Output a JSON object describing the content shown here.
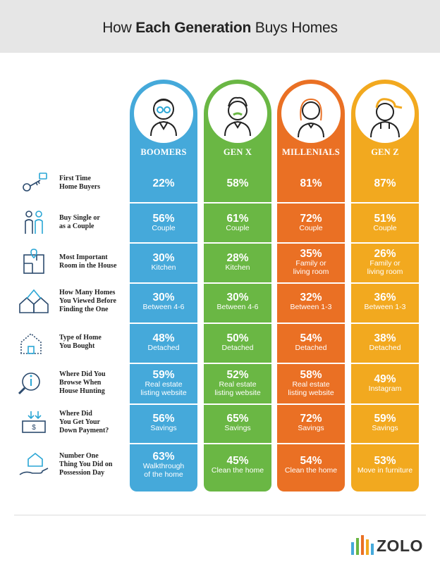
{
  "header": {
    "title_pre": "How ",
    "title_bold": "Each Generation",
    "title_post": " Buys Homes"
  },
  "colors": {
    "boomers": "#45a9da",
    "genx": "#6ab744",
    "millenials": "#ea7024",
    "genz": "#f2a91f",
    "header_bg": "#e6e6e6"
  },
  "generations": [
    {
      "name": "BOOMERS",
      "avatar": "boomer-icon",
      "cells": [
        {
          "pct": "22%",
          "sub": ""
        },
        {
          "pct": "56%",
          "sub": "Couple"
        },
        {
          "pct": "30%",
          "sub": "Kitchen"
        },
        {
          "pct": "30%",
          "sub": "Between 4-6"
        },
        {
          "pct": "48%",
          "sub": "Detached"
        },
        {
          "pct": "59%",
          "sub": "Real estate\nlisting website"
        },
        {
          "pct": "56%",
          "sub": "Savings"
        },
        {
          "pct": "63%",
          "sub": "Walkthrough\nof the home"
        }
      ]
    },
    {
      "name": "GEN X",
      "avatar": "genx-icon",
      "cells": [
        {
          "pct": "58%",
          "sub": ""
        },
        {
          "pct": "61%",
          "sub": "Couple"
        },
        {
          "pct": "28%",
          "sub": "Kitchen"
        },
        {
          "pct": "30%",
          "sub": "Between 4-6"
        },
        {
          "pct": "50%",
          "sub": "Detached"
        },
        {
          "pct": "52%",
          "sub": "Real estate\nlisting website"
        },
        {
          "pct": "65%",
          "sub": "Savings"
        },
        {
          "pct": "45%",
          "sub": "Clean the home"
        }
      ]
    },
    {
      "name": "MILLENIALS",
      "avatar": "millenial-icon",
      "cells": [
        {
          "pct": "81%",
          "sub": ""
        },
        {
          "pct": "72%",
          "sub": "Couple"
        },
        {
          "pct": "35%",
          "sub": "Family or\nliving room"
        },
        {
          "pct": "32%",
          "sub": "Between 1-3"
        },
        {
          "pct": "54%",
          "sub": "Detached"
        },
        {
          "pct": "58%",
          "sub": "Real estate\nlisting website"
        },
        {
          "pct": "72%",
          "sub": "Savings"
        },
        {
          "pct": "54%",
          "sub": "Clean the home"
        }
      ]
    },
    {
      "name": "GEN Z",
      "avatar": "genz-icon",
      "cells": [
        {
          "pct": "87%",
          "sub": ""
        },
        {
          "pct": "51%",
          "sub": "Couple"
        },
        {
          "pct": "26%",
          "sub": "Family or\nliving room"
        },
        {
          "pct": "36%",
          "sub": "Between 1-3"
        },
        {
          "pct": "38%",
          "sub": "Detached"
        },
        {
          "pct": "49%",
          "sub": "Instagram"
        },
        {
          "pct": "59%",
          "sub": "Savings"
        },
        {
          "pct": "53%",
          "sub": "Move in furniture"
        }
      ]
    }
  ],
  "rows": [
    {
      "label": "First Time\nHome Buyers",
      "icon": "keys-icon"
    },
    {
      "label": "Buy Single or\nas a Couple",
      "icon": "couple-icon"
    },
    {
      "label": "Most Important\nRoom in the House",
      "icon": "floorplan-icon"
    },
    {
      "label": "How Many Homes\nYou Viewed Before\nFinding the One",
      "icon": "houses-icon"
    },
    {
      "label": "Type of Home\nYou Bought",
      "icon": "house-icon"
    },
    {
      "label": "Where Did You\nBrowse When\nHouse Hunting",
      "icon": "magnifier-icon"
    },
    {
      "label": "Where Did\nYou Get Your\nDown Payment?",
      "icon": "money-icon"
    },
    {
      "label": "Number One\nThing You Did on\nPossession Day",
      "icon": "hand-house-icon"
    }
  ],
  "logo": {
    "text": "ZOLO",
    "colors": [
      "#45a9da",
      "#6ab744",
      "#ea7024",
      "#f2a91f"
    ]
  }
}
